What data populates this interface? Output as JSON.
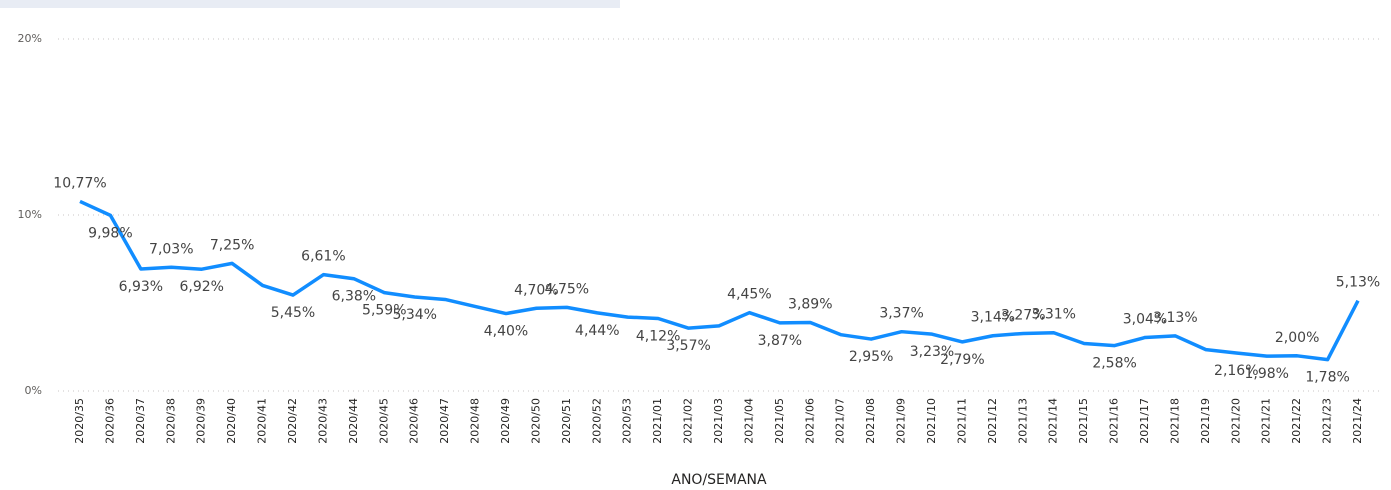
{
  "chart_data": {
    "type": "line",
    "x_label": "ANO/SEMANA",
    "categories": [
      "2020/35",
      "2020/36",
      "2020/37",
      "2020/38",
      "2020/39",
      "2020/40",
      "2020/41",
      "2020/42",
      "2020/43",
      "2020/44",
      "2020/45",
      "2020/46",
      "2020/47",
      "2020/48",
      "2020/49",
      "2020/50",
      "2020/51",
      "2020/52",
      "2020/53",
      "2021/01",
      "2021/02",
      "2021/03",
      "2021/04",
      "2021/05",
      "2021/06",
      "2021/07",
      "2021/08",
      "2021/09",
      "2021/10",
      "2021/11",
      "2021/12",
      "2021/13",
      "2021/14",
      "2021/15",
      "2021/16",
      "2021/17",
      "2021/18",
      "2021/19",
      "2021/20",
      "2021/21",
      "2021/22",
      "2021/23",
      "2021/24"
    ],
    "values": [
      10.77,
      9.98,
      6.93,
      7.03,
      6.92,
      7.25,
      6.0,
      5.45,
      6.61,
      6.38,
      5.59,
      5.34,
      5.2,
      4.8,
      4.4,
      4.7,
      4.75,
      4.44,
      4.2,
      4.12,
      3.57,
      3.7,
      4.45,
      3.87,
      3.89,
      3.2,
      2.95,
      3.37,
      3.23,
      2.79,
      3.14,
      3.27,
      3.31,
      2.7,
      2.58,
      3.04,
      3.13,
      2.35,
      2.16,
      1.98,
      2.0,
      1.78,
      5.13
    ],
    "value_labels": [
      "10,77%",
      "9,98%",
      "6,93%",
      "7,03%",
      "6,92%",
      "7,25%",
      null,
      "5,45%",
      "6,61%",
      "6,38%",
      "5,59%",
      "5,34%",
      null,
      null,
      "4,40%",
      "4,70%",
      "4,75%",
      "4,44%",
      null,
      "4,12%",
      "3,57%",
      null,
      "4,45%",
      "3,87%",
      "3,89%",
      null,
      "2,95%",
      "3,37%",
      "3,23%",
      "2,79%",
      "3,14%",
      "3,27%",
      "3,31%",
      null,
      "2,58%",
      "3,04%",
      "3,13%",
      null,
      "2,16%",
      "1,98%",
      "2,00%",
      "1,78%",
      "5,13%"
    ],
    "color": "#118dff",
    "ylim": [
      0,
      20
    ],
    "yticks": [
      {
        "value": 0,
        "label": "0%"
      },
      {
        "value": 10,
        "label": "10%"
      },
      {
        "value": 20,
        "label": "20%"
      }
    ],
    "grid": true
  }
}
